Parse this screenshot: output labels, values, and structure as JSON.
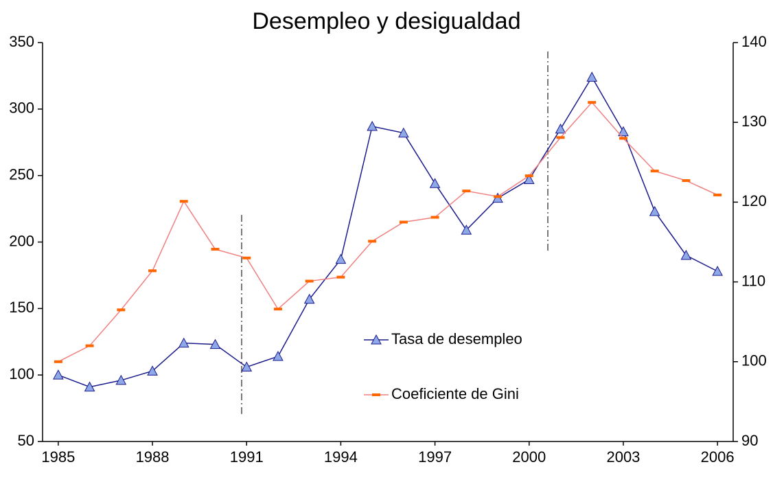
{
  "chart_data": {
    "type": "line",
    "title": "Desempleo y desigualdad",
    "x": [
      1985,
      1986,
      1987,
      1988,
      1989,
      1990,
      1991,
      1992,
      1993,
      1994,
      1995,
      1996,
      1997,
      1998,
      1999,
      2000,
      2001,
      2002,
      2003,
      2004,
      2005,
      2006
    ],
    "xlim": [
      1984.5,
      2006.5
    ],
    "xticks": [
      1985,
      1988,
      1991,
      1994,
      1997,
      2000,
      2003,
      2006
    ],
    "ylim": [
      50,
      350
    ],
    "yticks": [
      50,
      100,
      150,
      200,
      250,
      300,
      350
    ],
    "y2lim": [
      90,
      140
    ],
    "y2ticks": [
      90,
      100,
      110,
      120,
      130,
      140
    ],
    "legend": "center",
    "series": [
      {
        "name": "Tasa de desempleo",
        "color": "#1a1a8c",
        "marker": "triangle",
        "marker_color": "#8fa8e8",
        "values": [
          100,
          91,
          96,
          103,
          124,
          123,
          106,
          114,
          157,
          187,
          287,
          282,
          244,
          209,
          233,
          247,
          285,
          324,
          283,
          223,
          190,
          178
        ]
      },
      {
        "name": "Coeficiente de Gini",
        "color": "#f08080",
        "marker": "dash",
        "marker_color": "#ff6600",
        "axis": "y2",
        "values": [
          100,
          102,
          106.5,
          111.4,
          120.1,
          114.1,
          113,
          106.6,
          110.1,
          110.6,
          115.1,
          117.5,
          118.1,
          121.4,
          120.7,
          123.3,
          128.1,
          132.5,
          128,
          123.9,
          122.7,
          120.9
        ]
      }
    ]
  }
}
